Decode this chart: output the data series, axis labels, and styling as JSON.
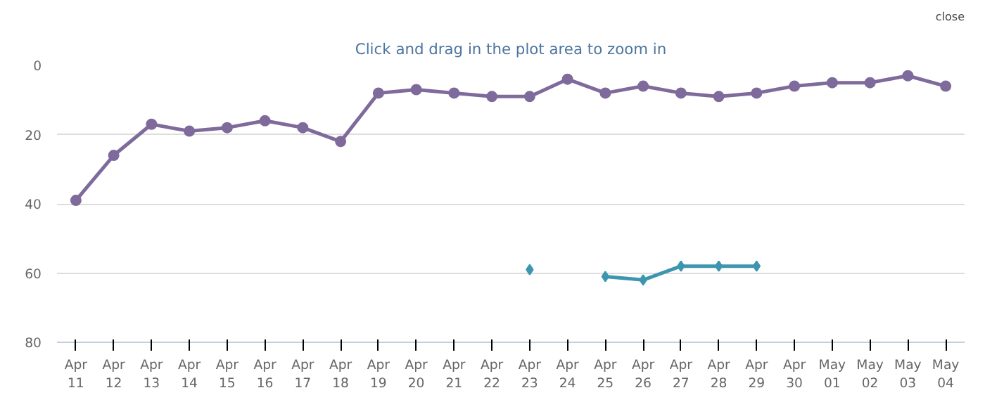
{
  "chart_data": {
    "type": "line",
    "subtitle": "Click and drag in the plot area to zoom in",
    "annotations": [
      "close"
    ],
    "categories": [
      "Apr 11",
      "Apr 12",
      "Apr 13",
      "Apr 14",
      "Apr 15",
      "Apr 16",
      "Apr 17",
      "Apr 18",
      "Apr 19",
      "Apr 20",
      "Apr 21",
      "Apr 22",
      "Apr 23",
      "Apr 24",
      "Apr 25",
      "Apr 26",
      "Apr 27",
      "Apr 28",
      "Apr 29",
      "Apr 30",
      "May 01",
      "May 02",
      "May 03",
      "May 04"
    ],
    "series": [
      {
        "color": "#7f6a9c",
        "marker": "circle",
        "values": [
          39,
          26,
          17,
          19,
          18,
          16,
          18,
          22,
          8,
          7,
          8,
          9,
          9,
          4,
          8,
          6,
          8,
          9,
          8,
          6,
          5,
          5,
          3,
          6
        ]
      },
      {
        "color": "#3d96ae",
        "marker": "diamond",
        "values": [
          null,
          null,
          null,
          null,
          null,
          null,
          null,
          null,
          null,
          null,
          null,
          null,
          59,
          null,
          61,
          62,
          58,
          58,
          58,
          null,
          null,
          null,
          null,
          null
        ]
      }
    ],
    "ylim": [
      80,
      0
    ],
    "yticks": [
      0,
      20,
      40,
      60,
      80
    ],
    "grid": "y",
    "line_style": "solid"
  }
}
